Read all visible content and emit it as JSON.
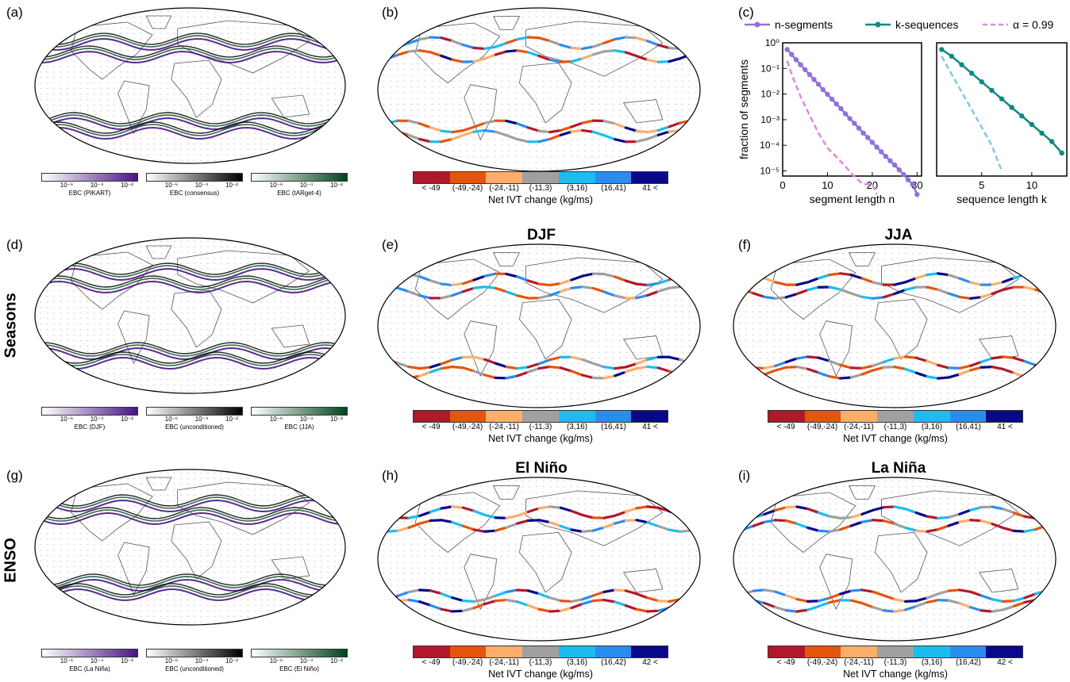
{
  "panel_labels": {
    "a": "(a)",
    "b": "(b)",
    "c": "(c)",
    "d": "(d)",
    "e": "(e)",
    "f": "(f)",
    "g": "(g)",
    "h": "(h)",
    "i": "(i)"
  },
  "row_labels": {
    "seasons": "Seasons",
    "enso": "ENSO"
  },
  "titles": {
    "e": "DJF",
    "f": "JJA",
    "h": "El Niño",
    "i": "La Niña"
  },
  "ebc": {
    "ticks": [
      "10⁻⁶",
      "10⁻⁴",
      "10⁻²"
    ],
    "row1": [
      "EBC (PIKART)",
      "EBC (consensus)",
      "EBC (tARget-4)"
    ],
    "row2": [
      "EBC (DJF)",
      "EBC (unconditioned)",
      "EBC (JJA)"
    ],
    "row3": [
      "EBC (La Niña)",
      "EBC (unconditioned)",
      "EBC (El Niño)"
    ],
    "colors": {
      "purple": "#4a1486",
      "black": "#000000",
      "green": "#00441b"
    }
  },
  "ivt": {
    "caption": "Net IVT change (kg/ms)",
    "labels_a": [
      "< -49",
      "(-49,-24)",
      "(-24,-11)",
      "(-11,3)",
      "(3,16)",
      "(16,41)",
      "41 <"
    ],
    "labels_b": [
      "< -49",
      "(-49,-24)",
      "(-24,-11)",
      "(-11,3)",
      "(3,16)",
      "(16,42)",
      "42 <"
    ],
    "colors": [
      "#b2182b",
      "#e6550d",
      "#fdae6b",
      "#a0a0a0",
      "#1cbcf0",
      "#2b8cf0",
      "#08088a"
    ]
  },
  "chart_data": {
    "type": "line",
    "legend": [
      "n-segments",
      "k-sequences",
      "α = 0.99"
    ],
    "ylabel": "fraction of segments",
    "left": {
      "xlabel": "segment length n",
      "xlim": [
        0,
        31
      ],
      "ylim_log10": [
        -5.2,
        0
      ],
      "xticks": [
        0,
        10,
        20,
        30
      ],
      "yticks": [
        "10⁰",
        "10⁻¹",
        "10⁻²",
        "10⁻³",
        "10⁻⁴",
        "10⁻⁵"
      ],
      "series": [
        {
          "name": "n-segments",
          "color": "#9370db",
          "x": [
            1,
            2,
            3,
            4,
            5,
            6,
            7,
            8,
            9,
            10,
            11,
            12,
            13,
            14,
            15,
            16,
            17,
            18,
            19,
            20,
            21,
            22,
            23,
            24,
            25,
            26,
            27,
            28,
            29,
            30
          ],
          "y": [
            0.55,
            0.35,
            0.22,
            0.14,
            0.09,
            0.058,
            0.037,
            0.024,
            0.015,
            0.0098,
            0.0063,
            0.0041,
            0.0027,
            0.0017,
            0.0011,
            0.00072,
            0.00047,
            0.0003,
            0.0002,
            0.00013,
            8.5e-05,
            5.6e-05,
            3.7e-05,
            2.5e-05,
            1.7e-05,
            1.1e-05,
            7.2e-06,
            4.5e-06,
            3e-06,
            1.2e-06
          ]
        },
        {
          "name": "α = 0.99",
          "color": "#dd88dd",
          "dashed": true,
          "x": [
            1,
            2,
            4,
            6,
            8,
            10,
            12,
            14,
            16,
            18,
            19,
            20,
            21
          ],
          "y": [
            0.2,
            0.06,
            0.008,
            0.0015,
            0.0003,
            8e-05,
            3.5e-05,
            1.5e-05,
            6e-06,
            3e-06,
            3e-06,
            3e-06,
            1.2e-06
          ]
        }
      ]
    },
    "right": {
      "xlabel": "sequence length k",
      "xlim": [
        0.5,
        13.5
      ],
      "ylim_log10": [
        -5.2,
        0
      ],
      "xticks": [
        5,
        10
      ],
      "series": [
        {
          "name": "k-sequences",
          "color": "#0e8a80",
          "x": [
            1,
            2,
            3,
            4,
            5,
            6,
            7,
            8,
            9,
            10,
            11,
            12,
            13
          ],
          "y": [
            0.55,
            0.3,
            0.14,
            0.065,
            0.03,
            0.014,
            0.0065,
            0.003,
            0.0014,
            0.00065,
            0.0003,
            0.00014,
            5e-05
          ]
        },
        {
          "name": "α = 0.99",
          "color": "#7ec8e3",
          "dashed": true,
          "x": [
            1,
            2,
            3,
            4,
            5,
            6,
            7
          ],
          "y": [
            0.3,
            0.06,
            0.012,
            0.0025,
            0.0005,
            0.0001,
            1e-05
          ]
        }
      ]
    }
  }
}
